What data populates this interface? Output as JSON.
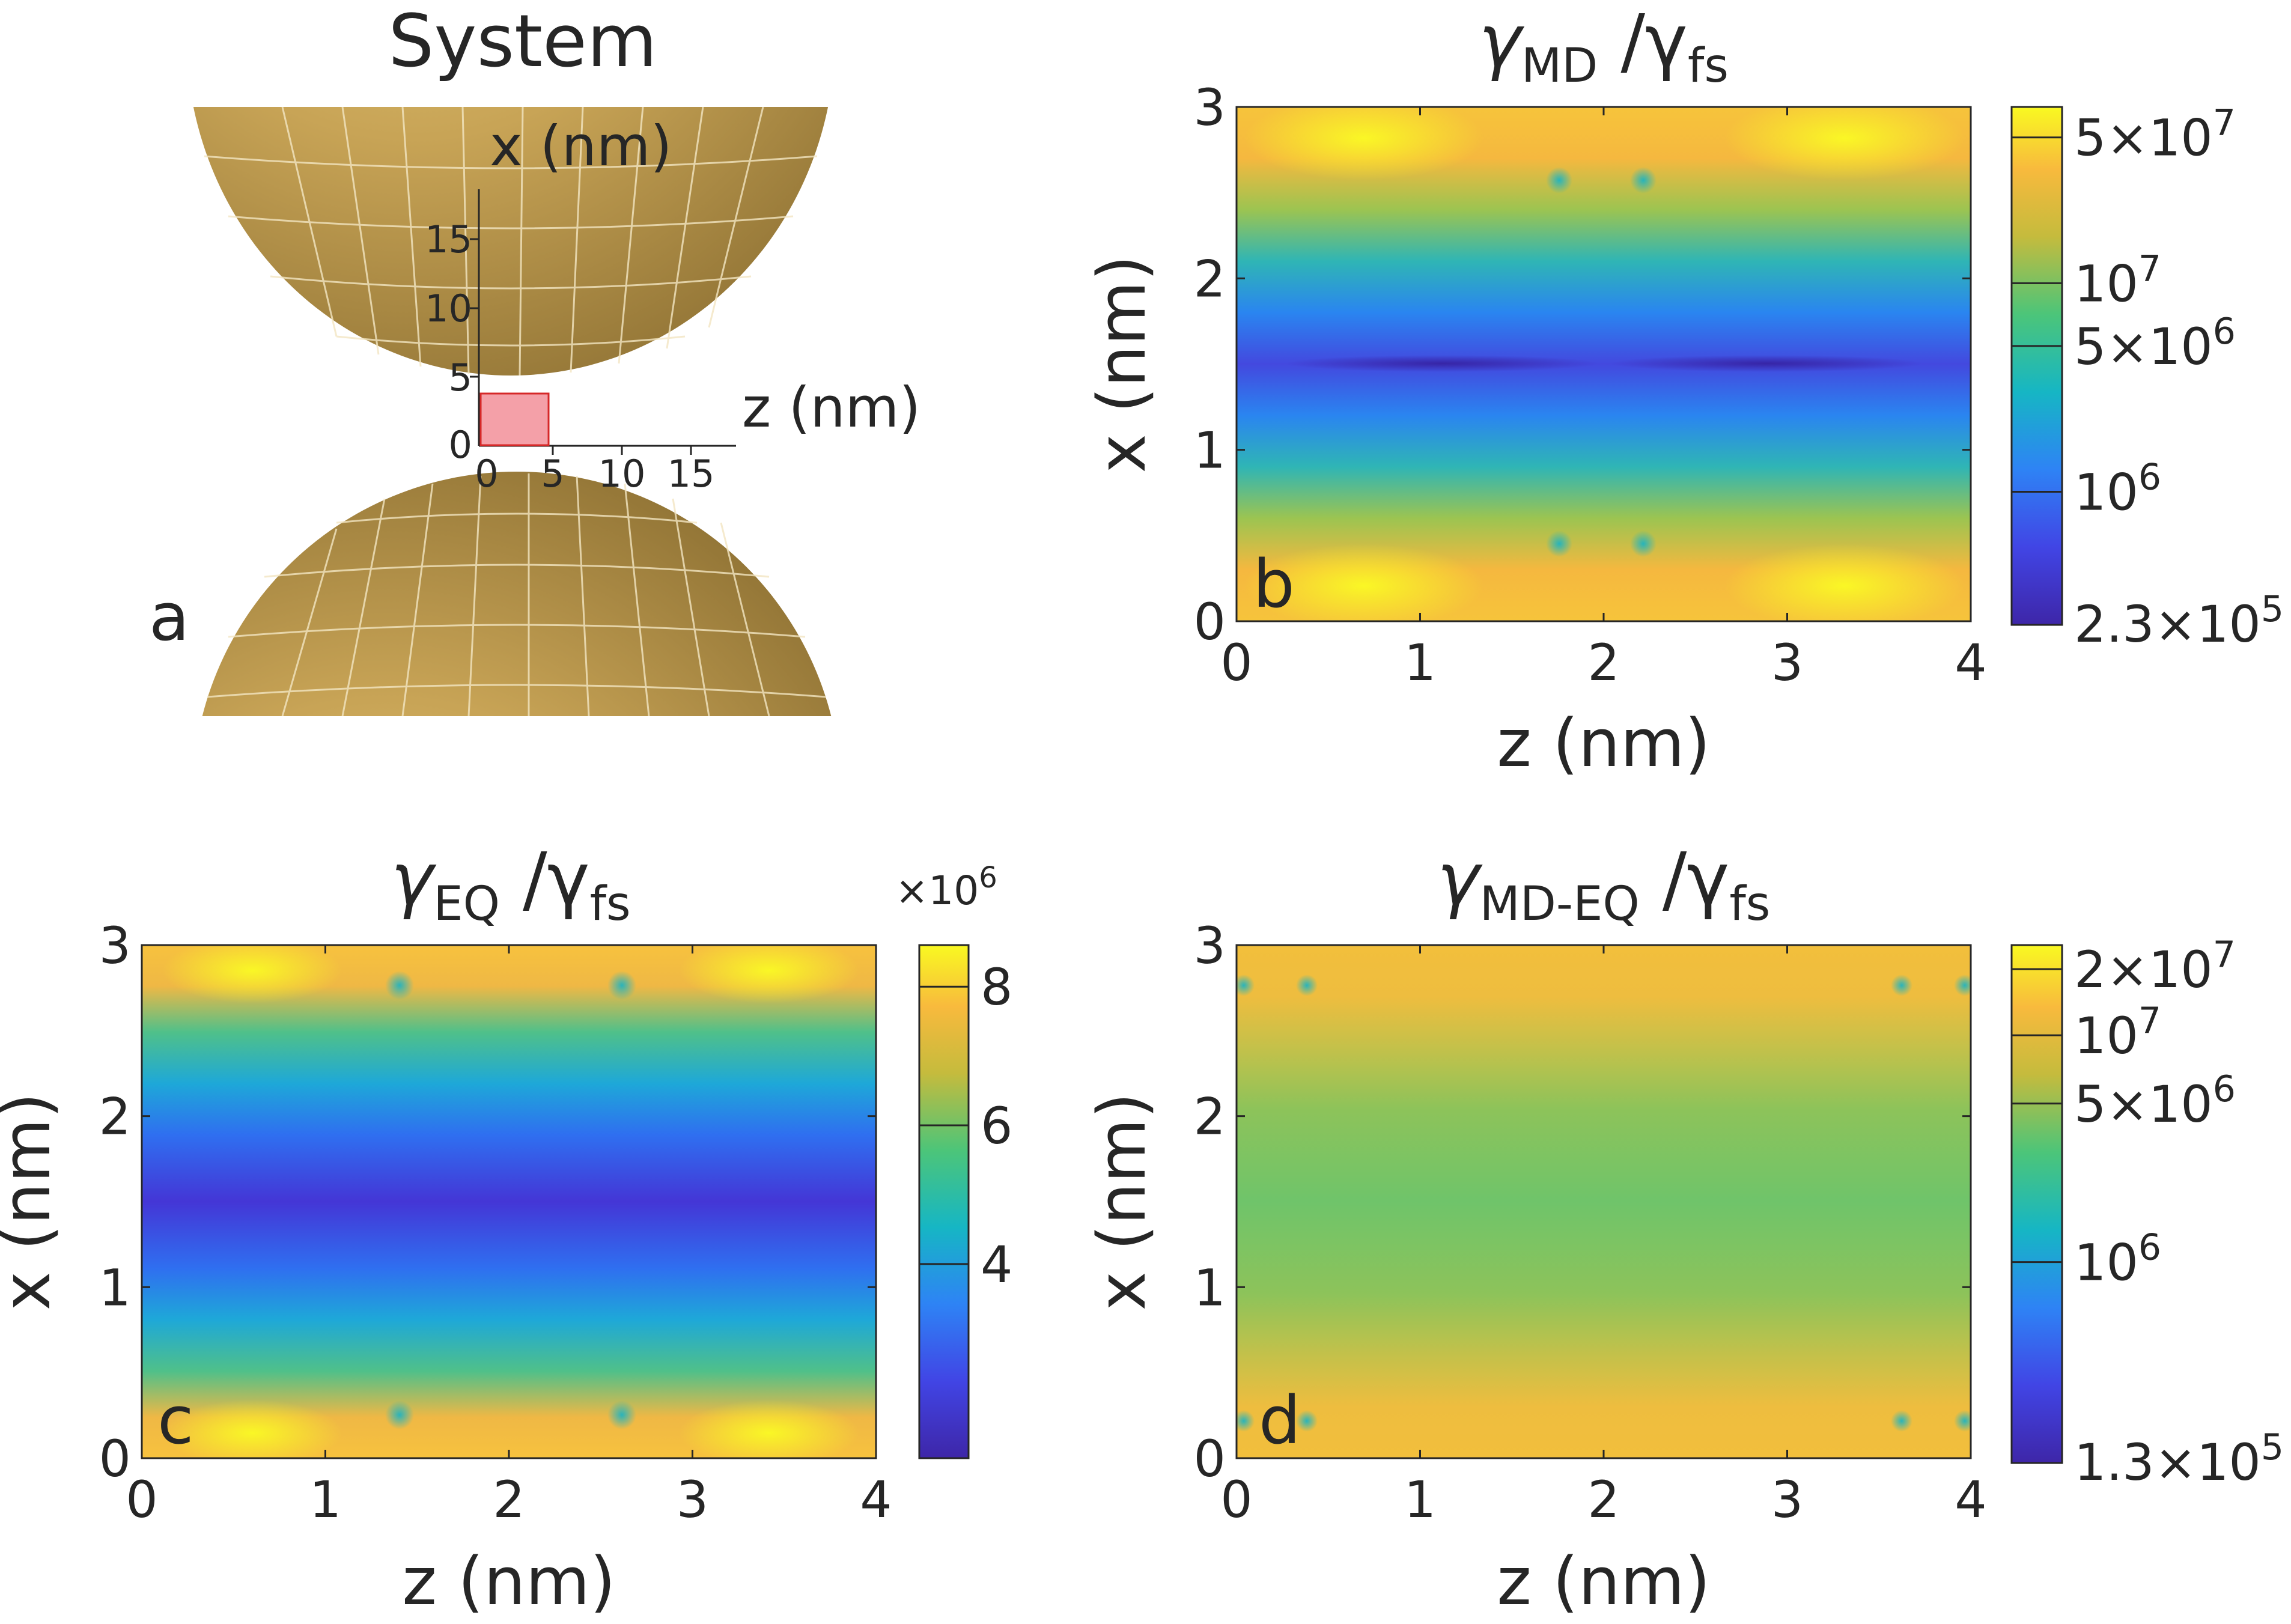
{
  "figure": {
    "panel_letters": [
      "a",
      "b",
      "c",
      "d"
    ]
  },
  "system_panel": {
    "title": "System",
    "x_axis_label": "x (nm)",
    "z_axis_label": "z (nm)",
    "x_ticks": [
      "0",
      "5",
      "10",
      "15"
    ],
    "z_ticks": [
      "0",
      "5",
      "10",
      "15"
    ],
    "sphere_color": "#c9a85a",
    "region_color": "#f4a0a8",
    "region_edge_color": "#d62828"
  },
  "chart_data": [
    {
      "type": "heatmap",
      "title": "γ_MD /γ_fs",
      "title_main": "γ",
      "title_sub": "MD",
      "title_rest": "/γ",
      "title_sub2": "fs",
      "xlabel": "z (nm)",
      "ylabel": "x (nm)",
      "xlim": [
        0,
        4
      ],
      "ylim": [
        0,
        3
      ],
      "xticks": [
        "0",
        "1",
        "2",
        "3",
        "4"
      ],
      "yticks": [
        "0",
        "1",
        "2",
        "3"
      ],
      "scale": "log",
      "colorbar_min": 230000,
      "colorbar_max": 70000000,
      "colorbar_ticks": [
        {
          "value": 230000,
          "label": "2.3×10",
          "exp": "5"
        },
        {
          "value": 1000000,
          "label": "10",
          "exp": "6"
        },
        {
          "value": 5000000,
          "label": "5×10",
          "exp": "6"
        },
        {
          "value": 10000000,
          "label": "10",
          "exp": "7"
        },
        {
          "value": 50000000,
          "label": "5×10",
          "exp": "7"
        }
      ],
      "panel_letter": "b"
    },
    {
      "type": "heatmap",
      "title": "γ_EQ /γ_fs",
      "title_main": "γ",
      "title_sub": "EQ",
      "title_rest": "/γ",
      "title_sub2": "fs",
      "xlabel": "z (nm)",
      "ylabel": "x (nm)",
      "xlim": [
        0,
        4
      ],
      "ylim": [
        0,
        3
      ],
      "xticks": [
        "0",
        "1",
        "2",
        "3",
        "4"
      ],
      "yticks": [
        "0",
        "1",
        "2",
        "3"
      ],
      "scale": "linear",
      "colorbar_multiplier": "×10",
      "colorbar_multiplier_exp": "6",
      "colorbar_min": 1.2,
      "colorbar_max": 8.6,
      "colorbar_ticks": [
        {
          "value": 4,
          "label": "4"
        },
        {
          "value": 6,
          "label": "6"
        },
        {
          "value": 8,
          "label": "8"
        }
      ],
      "panel_letter": "c"
    },
    {
      "type": "heatmap",
      "title": "γ_MD-EQ/γ_fs",
      "title_main": "γ",
      "title_sub": "MD-EQ",
      "title_rest": "/γ",
      "title_sub2": "fs",
      "xlabel": "z (nm)",
      "ylabel": "x (nm)",
      "xlim": [
        0,
        4
      ],
      "ylim": [
        0,
        3
      ],
      "xticks": [
        "0",
        "1",
        "2",
        "3",
        "4"
      ],
      "yticks": [
        "0",
        "1",
        "2",
        "3"
      ],
      "scale": "log",
      "colorbar_min": 130000,
      "colorbar_max": 25000000,
      "colorbar_ticks": [
        {
          "value": 130000,
          "label": "1.3×10",
          "exp": "5"
        },
        {
          "value": 1000000,
          "label": "10",
          "exp": "6"
        },
        {
          "value": 5000000,
          "label": "5×10",
          "exp": "6"
        },
        {
          "value": 10000000,
          "label": "10",
          "exp": "7"
        },
        {
          "value": 20000000,
          "label": "2×10",
          "exp": "7"
        }
      ],
      "panel_letter": "d"
    }
  ]
}
